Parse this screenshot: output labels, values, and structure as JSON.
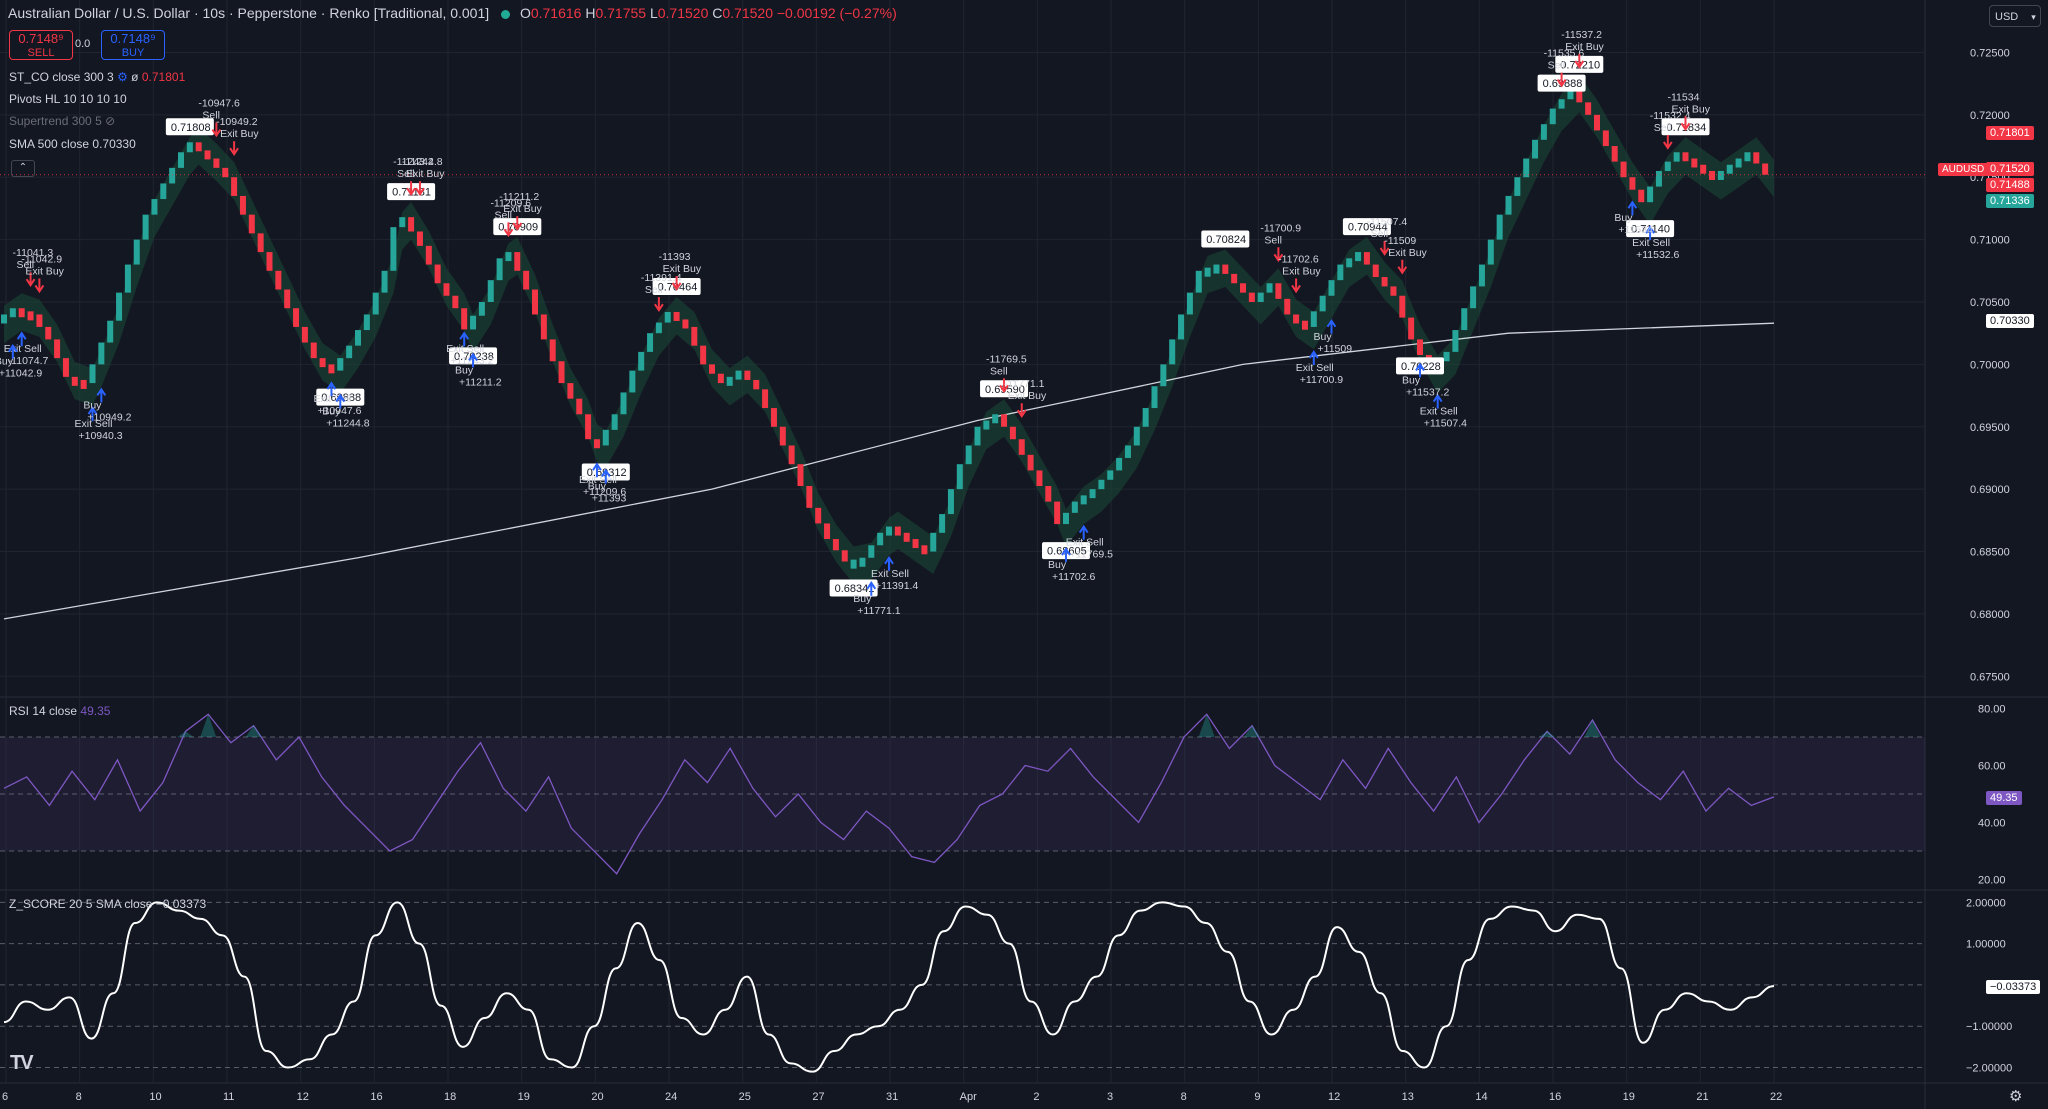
{
  "header": {
    "symbol": "Australian Dollar / U.S. Dollar · 10s · Pepperstone · Renko [Traditional, 0.001]",
    "open_label": "O",
    "open": "0.71616",
    "high_label": "H",
    "high": "0.71755",
    "low_label": "L",
    "low": "0.71520",
    "close_label": "C",
    "close": "0.71520",
    "change": "−0.00192 (−0.27%)"
  },
  "trade": {
    "sell_price": "0.7148⁹",
    "sell_label": "SELL",
    "spread": "0.0",
    "buy_price": "0.7148⁹",
    "buy_label": "BUY"
  },
  "indicators": {
    "st_co": "ST_CO close 300 3",
    "st_co_val_prefix": "ø",
    "st_co_val": "0.71801",
    "pivots": "Pivots HL 10 10 10 10",
    "supertrend": "Supertrend 300 5",
    "sma": "SMA 500 close",
    "sma_val": "0.70330",
    "rsi": "RSI 14 close",
    "rsi_val": "49.35",
    "zscore": "Z_SCORE 20 5 SMA close",
    "zscore_val": "−0.03373"
  },
  "currency": "USD",
  "axis_tags": {
    "st": "0.71801",
    "symbol": "AUDUSD",
    "last": "0.71520",
    "p2": "0.71488",
    "p3": "0.71336",
    "sma": "0.70330",
    "rsi": "49.35",
    "z": "−0.03373"
  },
  "colors": {
    "up": "#26a69a",
    "down": "#f23645",
    "green_cloud": "#1b4a37",
    "red_cloud": "#4b2230",
    "sma": "#d1d4dc",
    "rsi": "#7e57c2",
    "z": "#ffffff",
    "bg": "#131722",
    "grid": "#1f2430",
    "buy_arrow": "#2962ff",
    "sell_arrow": "#f23645",
    "exit": "#e040fb"
  },
  "chart_data": [
    {
      "type": "line",
      "title": "Australian Dollar / U.S. Dollar · 10s · Pepperstone · Renko [Traditional, 0.001]",
      "price_axis": [
        "0.72500",
        "0.72000",
        "0.71500",
        "0.71000",
        "0.70500",
        "0.70000",
        "0.69500",
        "0.69000",
        "0.68500",
        "0.68000",
        "0.67500"
      ],
      "ylim": [
        0.6735,
        0.7268
      ],
      "x_labels": [
        "6",
        "8",
        "10",
        "11",
        "12",
        "16",
        "18",
        "19",
        "20",
        "24",
        "25",
        "27",
        "31",
        "Apr",
        "2",
        "3",
        "8",
        "9",
        "12",
        "13",
        "14",
        "16",
        "19",
        "21",
        "22"
      ],
      "renko_path": [
        [
          0,
          0.7035
        ],
        [
          2,
          0.7045
        ],
        [
          4,
          0.704
        ],
        [
          6,
          0.702
        ],
        [
          8,
          0.699
        ],
        [
          10,
          0.6985
        ],
        [
          11,
          0.7
        ],
        [
          13,
          0.7035
        ],
        [
          15,
          0.708
        ],
        [
          17,
          0.712
        ],
        [
          19,
          0.7145
        ],
        [
          21,
          0.717
        ],
        [
          22,
          0.7178
        ],
        [
          24,
          0.7165
        ],
        [
          26,
          0.715
        ],
        [
          28,
          0.712
        ],
        [
          30,
          0.709
        ],
        [
          32,
          0.706
        ],
        [
          34,
          0.703
        ],
        [
          36,
          0.7005
        ],
        [
          38,
          0.6995
        ],
        [
          40,
          0.7015
        ],
        [
          42,
          0.704
        ],
        [
          44,
          0.7075
        ],
        [
          45,
          0.711
        ],
        [
          46,
          0.7118
        ],
        [
          48,
          0.7095
        ],
        [
          50,
          0.7065
        ],
        [
          52,
          0.7045
        ],
        [
          53,
          0.7028
        ],
        [
          55,
          0.705
        ],
        [
          57,
          0.7085
        ],
        [
          58,
          0.709
        ],
        [
          60,
          0.706
        ],
        [
          62,
          0.702
        ],
        [
          64,
          0.6985
        ],
        [
          66,
          0.696
        ],
        [
          67,
          0.694
        ],
        [
          68,
          0.6935
        ],
        [
          70,
          0.696
        ],
        [
          72,
          0.6995
        ],
        [
          74,
          0.7025
        ],
        [
          76,
          0.7042
        ],
        [
          78,
          0.703
        ],
        [
          80,
          0.7
        ],
        [
          82,
          0.6985
        ],
        [
          84,
          0.6995
        ],
        [
          86,
          0.698
        ],
        [
          88,
          0.695
        ],
        [
          90,
          0.692
        ],
        [
          92,
          0.6885
        ],
        [
          94,
          0.686
        ],
        [
          96,
          0.6842
        ],
        [
          98,
          0.6845
        ],
        [
          100,
          0.6865
        ],
        [
          101,
          0.687
        ],
        [
          103,
          0.686
        ],
        [
          105,
          0.685
        ],
        [
          107,
          0.688
        ],
        [
          109,
          0.692
        ],
        [
          111,
          0.695
        ],
        [
          113,
          0.696
        ],
        [
          115,
          0.694
        ],
        [
          117,
          0.6915
        ],
        [
          119,
          0.689
        ],
        [
          120,
          0.6872
        ],
        [
          122,
          0.689
        ],
        [
          124,
          0.69
        ],
        [
          126,
          0.6915
        ],
        [
          128,
          0.6935
        ],
        [
          130,
          0.6965
        ],
        [
          132,
          0.7
        ],
        [
          134,
          0.704
        ],
        [
          136,
          0.7075
        ],
        [
          138,
          0.708
        ],
        [
          140,
          0.7065
        ],
        [
          142,
          0.705
        ],
        [
          144,
          0.7065
        ],
        [
          146,
          0.704
        ],
        [
          148,
          0.703
        ],
        [
          150,
          0.7055
        ],
        [
          152,
          0.708
        ],
        [
          154,
          0.709
        ],
        [
          156,
          0.707
        ],
        [
          158,
          0.7055
        ],
        [
          160,
          0.702
        ],
        [
          162,
          0.6995
        ],
        [
          164,
          0.701
        ],
        [
          166,
          0.7045
        ],
        [
          168,
          0.708
        ],
        [
          170,
          0.712
        ],
        [
          172,
          0.715
        ],
        [
          174,
          0.718
        ],
        [
          176,
          0.7205
        ],
        [
          178,
          0.722
        ],
        [
          180,
          0.72
        ],
        [
          182,
          0.7175
        ],
        [
          184,
          0.715
        ],
        [
          186,
          0.713
        ],
        [
          188,
          0.7155
        ],
        [
          190,
          0.717
        ],
        [
          192,
          0.716
        ],
        [
          194,
          0.715
        ],
        [
          196,
          0.716
        ],
        [
          198,
          0.717
        ],
        [
          200,
          0.7152
        ]
      ],
      "sma_series": [
        [
          0,
          0.6796
        ],
        [
          40,
          0.6845
        ],
        [
          80,
          0.69
        ],
        [
          110,
          0.6955
        ],
        [
          140,
          0.7
        ],
        [
          170,
          0.7025
        ],
        [
          200,
          0.7033
        ]
      ],
      "price_labels": [
        "0.71808",
        "0.71181",
        "0.70909",
        "0.70464",
        "0.70238",
        "0.69888",
        "0.69312",
        "0.68341",
        "0.69590",
        "0.68605",
        "0.70824",
        "0.70944",
        "0.70228",
        "0.69888",
        "0.72210",
        "0.71834",
        "0.71140"
      ],
      "annotations": [
        "-10947.6 Sell",
        "-10949.2 Exit Buy",
        "-11041.3 Sell",
        "-11042.9 Exit Buy",
        "Exit Sell -11074.7",
        "Buy +11042.9",
        "Exit Sell +10940.3",
        "Buy +10949.2",
        "-11243.2 Sell",
        "-11244.8 Exit Buy",
        "Exit Sell +10947.6",
        "Buy +11244.8",
        "-11209.6 Sell",
        "-11211.2 Exit Buy",
        "Exit Sell +11243.2",
        "Buy +11211.2",
        "-11391.4 Sell",
        "-11393 Exit Buy",
        "Exit Sell +11209.6",
        "Buy +11393",
        "Exit Sell +11391.4",
        "Buy +11771.1",
        "-11769.5 Sell",
        "-11771.1 Exit Buy",
        "Exit Sell +11769.5",
        "Buy +11702.6",
        "-11700.9 Sell",
        "-11702.6 Exit Buy",
        "Exit Sell +11700.9",
        "Buy +11509",
        "-11507.4 Sell",
        "-11509 Exit Buy",
        "Exit Sell +11507.4",
        "Buy +11537.2",
        "-11535.6 Sell",
        "-11537.2 Exit Buy",
        "-11532.4 Sell",
        "-11534 Exit Buy",
        "Exit Sell +11532.6",
        "Buy +11534"
      ]
    },
    {
      "type": "line",
      "title": "RSI 14 close",
      "ylim": [
        17,
        83
      ],
      "y_ticks": [
        "80.00",
        "60.00",
        "40.00",
        "20.00"
      ],
      "bands": [
        70,
        50,
        30
      ],
      "values": [
        52,
        56,
        46,
        58,
        48,
        62,
        44,
        54,
        72,
        78,
        68,
        74,
        62,
        70,
        56,
        46,
        38,
        30,
        34,
        46,
        58,
        68,
        52,
        44,
        56,
        38,
        30,
        22,
        36,
        48,
        62,
        54,
        66,
        52,
        42,
        50,
        40,
        34,
        44,
        38,
        28,
        26,
        34,
        46,
        50,
        60,
        58,
        66,
        56,
        48,
        40,
        54,
        70,
        78,
        66,
        74,
        60,
        54,
        48,
        62,
        52,
        66,
        54,
        44,
        56,
        40,
        50,
        62,
        72,
        64,
        76,
        62,
        54,
        48,
        58,
        44,
        52,
        46,
        49
      ],
      "last": 49.35
    },
    {
      "type": "line",
      "title": "Z_SCORE 20 5 SMA close",
      "ylim": [
        -2.35,
        2.25
      ],
      "y_ticks": [
        "2.00000",
        "1.00000",
        "−1.00000",
        "−2.00000"
      ],
      "values": [
        -0.9,
        -0.4,
        -0.6,
        -0.3,
        -1.3,
        -0.2,
        1.5,
        2.0,
        1.8,
        1.6,
        1.2,
        0.2,
        -1.6,
        -2.0,
        -1.8,
        -1.2,
        -0.4,
        1.2,
        2.0,
        1.0,
        -0.5,
        -1.5,
        -0.8,
        -0.2,
        -0.6,
        -1.8,
        -2.0,
        -1.0,
        0.4,
        1.5,
        0.6,
        -0.8,
        -1.2,
        -0.6,
        0.2,
        -1.2,
        -1.9,
        -2.1,
        -1.6,
        -1.2,
        -1.0,
        -0.6,
        0.0,
        1.3,
        1.9,
        1.7,
        1.0,
        -0.4,
        -1.2,
        -0.4,
        0.2,
        1.2,
        1.8,
        2.0,
        1.9,
        1.5,
        0.8,
        -0.4,
        -1.2,
        -0.6,
        0.2,
        1.4,
        0.8,
        -0.2,
        -1.6,
        -2.0,
        -1.0,
        0.6,
        1.6,
        1.9,
        1.8,
        1.3,
        1.7,
        1.6,
        0.4,
        -1.4,
        -0.6,
        -0.2,
        -0.4,
        -0.6,
        -0.3,
        -0.03
      ],
      "last": -0.03373
    }
  ]
}
